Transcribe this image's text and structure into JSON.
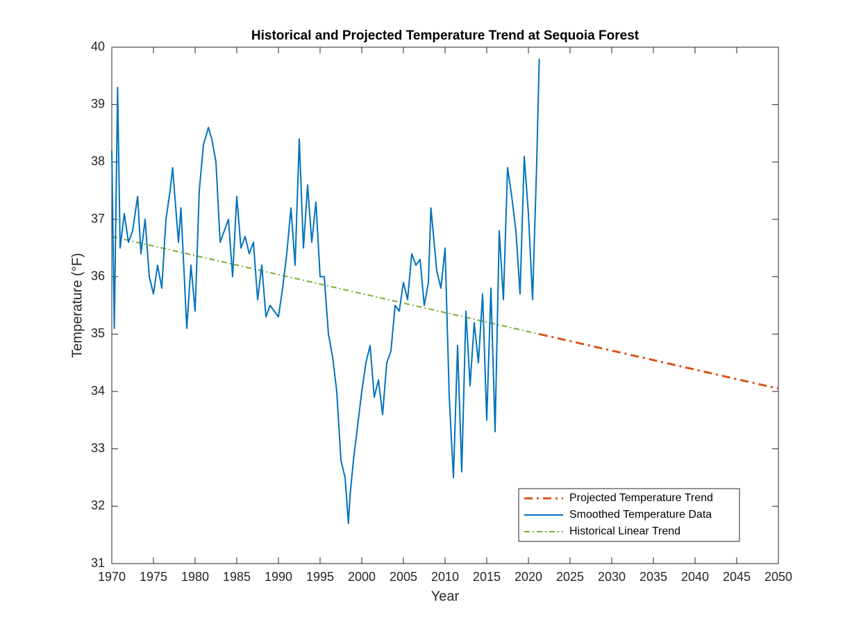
{
  "chart_data": {
    "type": "line",
    "title": "Historical and Projected Temperature Trend at Sequoia Forest",
    "xlabel": "Year",
    "ylabel": "Temperature (°F)",
    "xlim": [
      1970,
      2050
    ],
    "ylim": [
      31,
      40
    ],
    "xticks": [
      1970,
      1975,
      1980,
      1985,
      1990,
      1995,
      2000,
      2005,
      2010,
      2015,
      2020,
      2025,
      2030,
      2035,
      2040,
      2045,
      2050
    ],
    "yticks": [
      31,
      32,
      33,
      34,
      35,
      36,
      37,
      38,
      39,
      40
    ],
    "grid": false,
    "legend": "southeast",
    "series": [
      {
        "name": "Projected Temperature Trend",
        "color": "#D95319",
        "linestyle": "-.",
        "linewidth": 3,
        "x": [
          2021.3,
          2050
        ],
        "values": [
          35.0,
          34.05
        ]
      },
      {
        "name": "Smoothed Temperature Data",
        "color": "#0072BD",
        "linestyle": "-",
        "linewidth": 2,
        "x": [
          1970,
          1970.3,
          1970.7,
          1971,
          1971.5,
          1972,
          1972.5,
          1973.1,
          1973.5,
          1974,
          1974.5,
          1975,
          1975.5,
          1976,
          1976.5,
          1977,
          1977.3,
          1978,
          1978.3,
          1979,
          1979.5,
          1980,
          1980.5,
          1981,
          1981.6,
          1982,
          1982.5,
          1983,
          1983.5,
          1984,
          1984.5,
          1985,
          1985.5,
          1986,
          1986.5,
          1987,
          1987.5,
          1988,
          1988.5,
          1989,
          1989.5,
          1990,
          1990.5,
          1991,
          1991.5,
          1992,
          1992.5,
          1993,
          1993.5,
          1994,
          1994.5,
          1995,
          1995.5,
          1996,
          1996.5,
          1997,
          1997.5,
          1998,
          1998.4,
          1998.6,
          1999,
          1999.5,
          2000,
          2000.5,
          2001,
          2001.5,
          2002,
          2002.5,
          2003,
          2003.5,
          2004,
          2004.5,
          2005,
          2005.5,
          2006,
          2006.5,
          2007,
          2007.5,
          2008,
          2008.3,
          2009,
          2009.5,
          2010,
          2010.5,
          2011,
          2011.5,
          2012,
          2012.5,
          2013,
          2013.5,
          2014,
          2014.5,
          2015,
          2015.5,
          2016,
          2016.5,
          2017,
          2017.5,
          2018,
          2018.5,
          2019,
          2019.5,
          2020,
          2020.5,
          2021,
          2021.3
        ],
        "values": [
          38.2,
          35.1,
          39.3,
          36.5,
          37.1,
          36.6,
          36.8,
          37.4,
          36.4,
          37.0,
          36.0,
          35.7,
          36.2,
          35.8,
          37.0,
          37.5,
          37.9,
          36.6,
          37.2,
          35.1,
          36.2,
          35.4,
          37.5,
          38.3,
          38.6,
          38.4,
          38.0,
          36.6,
          36.8,
          37.0,
          36.0,
          37.4,
          36.5,
          36.7,
          36.4,
          36.6,
          35.6,
          36.2,
          35.3,
          35.5,
          35.4,
          35.3,
          35.8,
          36.4,
          37.2,
          36.2,
          38.4,
          36.5,
          37.6,
          36.6,
          37.3,
          36.0,
          36.0,
          35.0,
          34.6,
          34.0,
          32.8,
          32.5,
          31.7,
          32.2,
          32.8,
          33.4,
          34.0,
          34.5,
          34.8,
          33.9,
          34.2,
          33.6,
          34.5,
          34.7,
          35.5,
          35.4,
          35.9,
          35.6,
          36.4,
          36.2,
          36.3,
          35.5,
          35.9,
          37.2,
          36.1,
          35.8,
          36.5,
          33.9,
          32.5,
          34.8,
          32.6,
          35.4,
          34.1,
          35.2,
          34.5,
          35.7,
          33.5,
          35.8,
          33.3,
          36.8,
          35.6,
          37.9,
          37.4,
          36.8,
          35.7,
          38.1,
          37.1,
          35.6,
          38.0,
          39.8
        ]
      },
      {
        "name": "Historical Linear Trend",
        "color": "#77AC30",
        "linestyle": "-.",
        "linewidth": 2,
        "x": [
          1970,
          2021.3
        ],
        "values": [
          36.7,
          35.0
        ]
      }
    ]
  }
}
